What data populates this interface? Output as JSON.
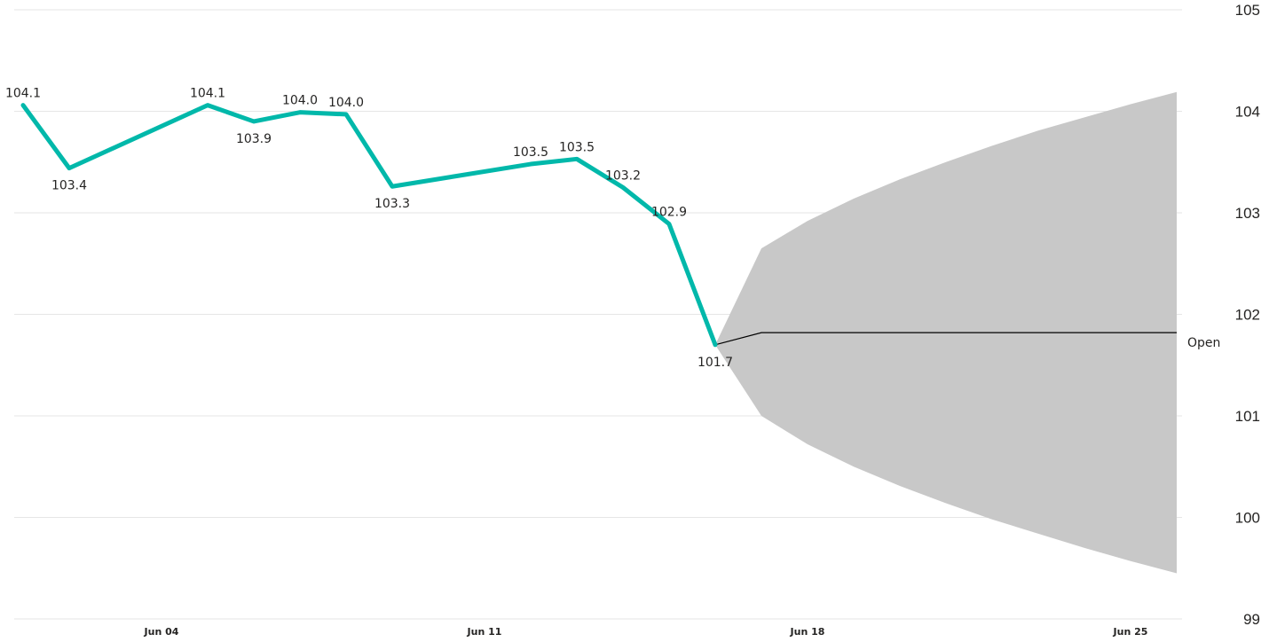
{
  "chart_data": {
    "type": "line",
    "title": "",
    "xlabel": "",
    "ylabel": "",
    "ylim": [
      99,
      105
    ],
    "xlim": [
      "2023-06-01",
      "2023-06-26"
    ],
    "y_ticks": [
      {
        "value": 99,
        "label": "99"
      },
      {
        "value": 100,
        "label": "100"
      },
      {
        "value": 101,
        "label": "101"
      },
      {
        "value": 102,
        "label": "102"
      },
      {
        "value": 103,
        "label": "103"
      },
      {
        "value": 104,
        "label": "104"
      },
      {
        "value": 105,
        "label": "105"
      }
    ],
    "x_ticks": [
      {
        "date": "2023-06-04",
        "label": "Jun 04"
      },
      {
        "date": "2023-06-11",
        "label": "Jun 11"
      },
      {
        "date": "2023-06-18",
        "label": "Jun 18"
      },
      {
        "date": "2023-06-25",
        "label": "Jun 25"
      }
    ],
    "y_axis_side": "right",
    "grid": true,
    "series": [
      {
        "name": "Open",
        "color": "#01B8AA",
        "points": [
          {
            "x": "2023-06-01",
            "y": 104.06,
            "label": "104.1",
            "label_pos": "above"
          },
          {
            "x": "2023-06-02",
            "y": 103.44,
            "label": "103.4",
            "label_pos": "below"
          },
          {
            "x": "2023-06-05",
            "y": 104.06,
            "label": "104.1",
            "label_pos": "above"
          },
          {
            "x": "2023-06-06",
            "y": 103.9,
            "label": "103.9",
            "label_pos": "below"
          },
          {
            "x": "2023-06-07",
            "y": 103.99,
            "label": "104.0",
            "label_pos": "above"
          },
          {
            "x": "2023-06-08",
            "y": 103.97,
            "label": "104.0",
            "label_pos": "above"
          },
          {
            "x": "2023-06-09",
            "y": 103.26,
            "label": "103.3",
            "label_pos": "below"
          },
          {
            "x": "2023-06-12",
            "y": 103.48,
            "label": "103.5",
            "label_pos": "above"
          },
          {
            "x": "2023-06-13",
            "y": 103.53,
            "label": "103.5",
            "label_pos": "above"
          },
          {
            "x": "2023-06-14",
            "y": 103.25,
            "label": "103.2",
            "label_pos": "above"
          },
          {
            "x": "2023-06-15",
            "y": 102.89,
            "label": "102.9",
            "label_pos": "above"
          },
          {
            "x": "2023-06-16",
            "y": 101.7,
            "label": "101.7",
            "label_pos": "below"
          }
        ]
      }
    ],
    "forecast": {
      "color": "#000000",
      "band_color": "#C8C8C8",
      "points": [
        {
          "x": "2023-06-16",
          "y": 101.7,
          "lower": 101.7,
          "upper": 101.7
        },
        {
          "x": "2023-06-17",
          "y": 101.82,
          "lower": 101.0,
          "upper": 102.65
        },
        {
          "x": "2023-06-18",
          "y": 101.82,
          "lower": 100.72,
          "upper": 102.92
        },
        {
          "x": "2023-06-19",
          "y": 101.82,
          "lower": 100.5,
          "upper": 103.14
        },
        {
          "x": "2023-06-20",
          "y": 101.82,
          "lower": 100.31,
          "upper": 103.33
        },
        {
          "x": "2023-06-21",
          "y": 101.82,
          "lower": 100.14,
          "upper": 103.5
        },
        {
          "x": "2023-06-22",
          "y": 101.82,
          "lower": 99.98,
          "upper": 103.66
        },
        {
          "x": "2023-06-23",
          "y": 101.82,
          "lower": 99.84,
          "upper": 103.81
        },
        {
          "x": "2023-06-24",
          "y": 101.82,
          "lower": 99.7,
          "upper": 103.94
        },
        {
          "x": "2023-06-25",
          "y": 101.82,
          "lower": 99.57,
          "upper": 104.07
        },
        {
          "x": "2023-06-26",
          "y": 101.82,
          "lower": 99.45,
          "upper": 104.19
        }
      ]
    },
    "series_end_label": "Open"
  }
}
